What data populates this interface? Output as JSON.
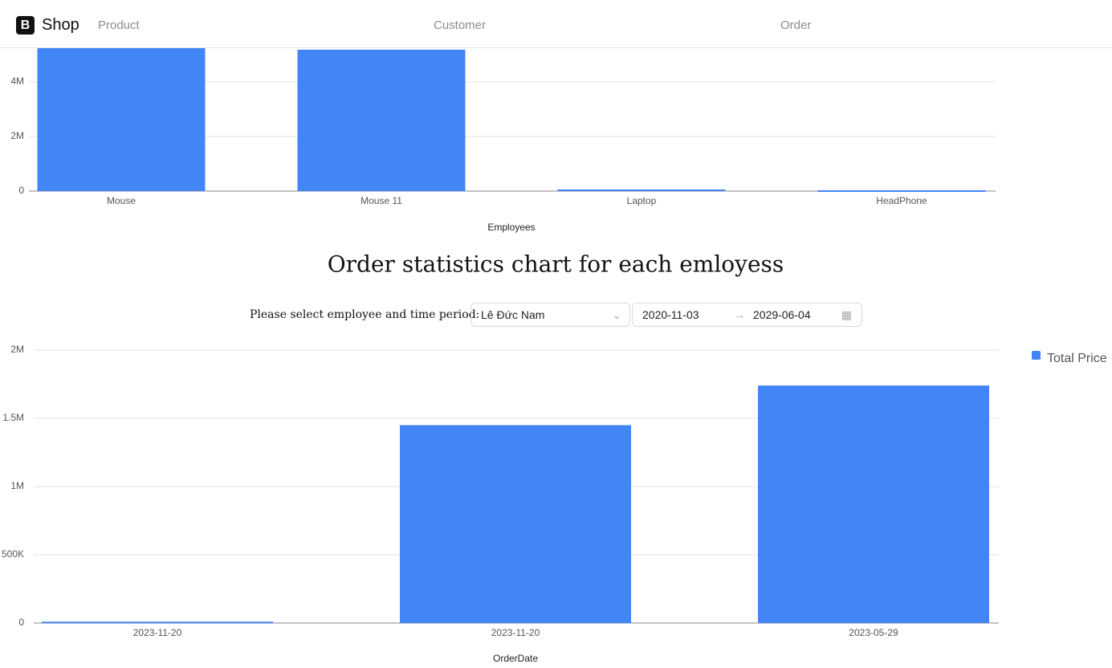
{
  "header": {
    "logo": "B",
    "brand": "Shop",
    "nav": [
      "Product",
      "Customer",
      "Order"
    ]
  },
  "form": {
    "label": "Please select employee and time period:",
    "employee": "Lê Đức Nam",
    "start": "2020-11-03",
    "end": "2029-06-04"
  },
  "chart_title": "Order statistics chart for each emloyess",
  "chart_data": [
    {
      "type": "bar",
      "x_label": "Employees",
      "categories": [
        "Mouse",
        "Mouse 11",
        "Laptop",
        "HeadPhone"
      ],
      "series": [
        {
          "name": null,
          "color": "#4285f4",
          "values": [
            5250000,
            5180000,
            60000,
            30000
          ]
        }
      ],
      "ylim": [
        0,
        6000000
      ],
      "yticks": [
        0,
        {
          "value": 2000000,
          "label": "2M"
        },
        {
          "value": 4000000,
          "label": "4M"
        }
      ],
      "grid": true
    },
    {
      "type": "bar",
      "x_label": "OrderDate",
      "categories": [
        "2023-11-20",
        "2023-11-20",
        "2023-05-29"
      ],
      "series": [
        {
          "name": "Total Price",
          "color": "#4285f4",
          "values": [
            10000,
            1450000,
            1740000
          ]
        }
      ],
      "ylim": [
        0,
        2000000
      ],
      "yticks": [
        0,
        {
          "value": 500000,
          "label": "500K"
        },
        {
          "value": 1000000,
          "label": "1M"
        },
        {
          "value": 1500000,
          "label": "1.5M"
        },
        {
          "value": 2000000,
          "label": "2M"
        }
      ],
      "grid": true,
      "legend": "right"
    }
  ]
}
